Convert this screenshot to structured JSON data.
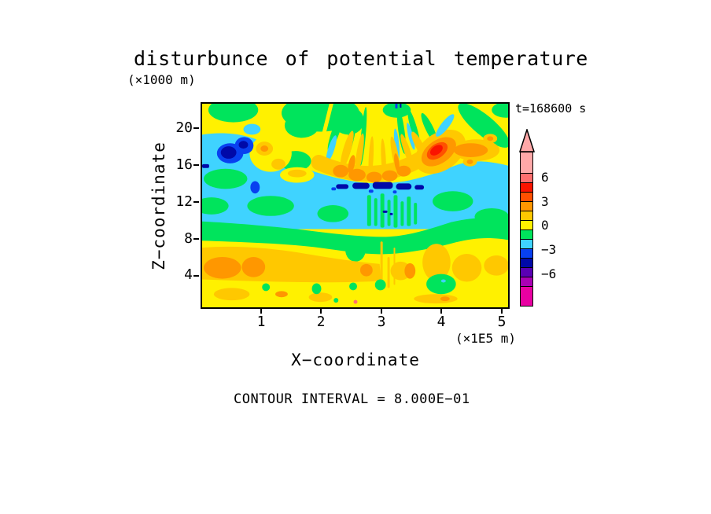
{
  "title": "disturbunce of potential temperature",
  "y_axis_unit": "(×1000 m)",
  "time_label": "t=168600 s",
  "axes": {
    "x": {
      "label": "X−coordinate",
      "unit": "(×1E5 m)",
      "ticks": [
        "1",
        "2",
        "3",
        "4",
        "5"
      ]
    },
    "y": {
      "label": "Z−coordinate",
      "ticks": [
        "20",
        "16",
        "12",
        "8",
        "4"
      ]
    }
  },
  "colorbar": {
    "labels": [
      "6",
      "3",
      "0",
      "−3",
      "−6"
    ],
    "arrow_icon": "up-arrow",
    "segments": [
      {
        "name": "light-pink",
        "color": "lpk"
      },
      {
        "name": "salmon",
        "color": "sal"
      },
      {
        "name": "red",
        "color": "red"
      },
      {
        "name": "orange-red",
        "color": "ord"
      },
      {
        "name": "orange",
        "color": "org"
      },
      {
        "name": "gold",
        "color": "gld"
      },
      {
        "name": "yellow",
        "color": "yel"
      },
      {
        "name": "green",
        "color": "grn"
      },
      {
        "name": "cyan",
        "color": "cyn"
      },
      {
        "name": "blue",
        "color": "blu"
      },
      {
        "name": "navy",
        "color": "nvy"
      },
      {
        "name": "violet",
        "color": "vio"
      },
      {
        "name": "purple",
        "color": "pur"
      },
      {
        "name": "magenta",
        "color": "mag"
      }
    ]
  },
  "footer_note": "CONTOUR INTERVAL = 8.000E−01",
  "palette": {
    "yel": "#FFF100",
    "grn": "#00E45C",
    "cyn": "#3FD3FF",
    "gld": "#FFC800",
    "org": "#FF9700",
    "ord": "#FF5000",
    "red": "#FA1400",
    "sal": "#FF6F6F",
    "lpk": "#FFA8A8",
    "blu": "#0840F0",
    "nvy": "#0009A8",
    "vio": "#5A00B4",
    "pur": "#AA00B4",
    "mag": "#E800A2"
  },
  "chart_data": {
    "type": "filled_contour",
    "title": "disturbunce of potential temperature",
    "xlabel": "X−coordinate",
    "x_unit": "×1E5 m",
    "ylabel": "Z−coordinate",
    "y_unit": "×1000 m",
    "xlim": [
      0,
      5
    ],
    "ylim": [
      0,
      22.4
    ],
    "x_ticks": [
      1,
      2,
      3,
      4,
      5
    ],
    "y_ticks": [
      4,
      8,
      12,
      16,
      20
    ],
    "time_seconds": 168600,
    "contour_interval": 0.8,
    "colorbar_tick_values": [
      6,
      3,
      0,
      -3,
      -6
    ],
    "colorbar_colors_top_to_bottom": [
      "light-pink",
      "salmon",
      "red",
      "orange-red",
      "orange",
      "gold",
      "yellow",
      "green",
      "cyan",
      "blue",
      "navy",
      "violet",
      "purple",
      "magenta"
    ],
    "field_features": [
      "yellow background (0 to +0.8) over most of the domain",
      "cyan negative band (-1.6 to -0.8) spanning z≈9-14 km across full width",
      "green band (-0.8 to 0) along z≈6.5-9 km and green patches near the top z≈19-22 km",
      "two dark-blue minima (< -4) with blue rings near x≈0.4-0.8, z≈16-17 km",
      "red maximum (> +4.8) ringed by orange at x≈3.8, z≈17 km",
      "fan of alternating yellow/gold/orange/green/cyan rays radiating downward from the top boundary near x≈2.9",
      "row of small dark-blue spots (< -3.2) at z≈13 km between x≈2.2 and 3.0",
      "orange band (+1.6 to +3.2) along z≈3-5 km, strongest blobs at x≈0.1-1.0",
      "small green spots in the bottom yellow band near z≈2 km"
    ]
  }
}
